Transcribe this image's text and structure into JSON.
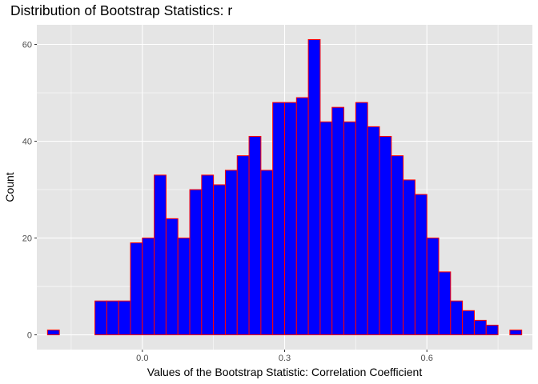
{
  "chart_data": {
    "type": "bar",
    "title": "Distribution of Bootstrap Statistics: r",
    "xlabel": "Values of the Bootstrap Statistic: Correlation Coefficient",
    "ylabel": "Count",
    "bin_width": 0.025,
    "bins_start": [
      -0.2,
      -0.175,
      -0.15,
      -0.125,
      -0.1,
      -0.075,
      -0.05,
      -0.025,
      0.0,
      0.025,
      0.05,
      0.075,
      0.1,
      0.125,
      0.15,
      0.175,
      0.2,
      0.225,
      0.25,
      0.275,
      0.3,
      0.325,
      0.35,
      0.375,
      0.4,
      0.425,
      0.45,
      0.475,
      0.5,
      0.525,
      0.55,
      0.575,
      0.6,
      0.625,
      0.65,
      0.675,
      0.7,
      0.725,
      0.75,
      0.775
    ],
    "values": [
      1,
      0,
      0,
      0,
      7,
      7,
      7,
      19,
      20,
      33,
      24,
      20,
      30,
      33,
      31,
      34,
      37,
      41,
      34,
      48,
      48,
      49,
      61,
      44,
      47,
      44,
      48,
      43,
      41,
      37,
      32,
      29,
      20,
      13,
      7,
      5,
      3,
      2,
      0,
      1
    ],
    "xlim": [
      -0.2225,
      0.8225
    ],
    "ylim": [
      -3.05,
      64.05
    ],
    "x_ticks": [
      0.0,
      0.3,
      0.6
    ],
    "x_tick_labels": [
      "0.0",
      "0.3",
      "0.6"
    ],
    "y_ticks": [
      0,
      20,
      40,
      60
    ],
    "y_tick_labels": [
      "0",
      "20",
      "40",
      "60"
    ],
    "grid": true,
    "colors": {
      "panel_background": "#e5e5e5",
      "grid_major": "#ffffff",
      "bar_fill": "#0000ff",
      "bar_outline": "#ff0000",
      "tick_text": "#4d4d4d",
      "tick_mark": "#333333"
    }
  }
}
